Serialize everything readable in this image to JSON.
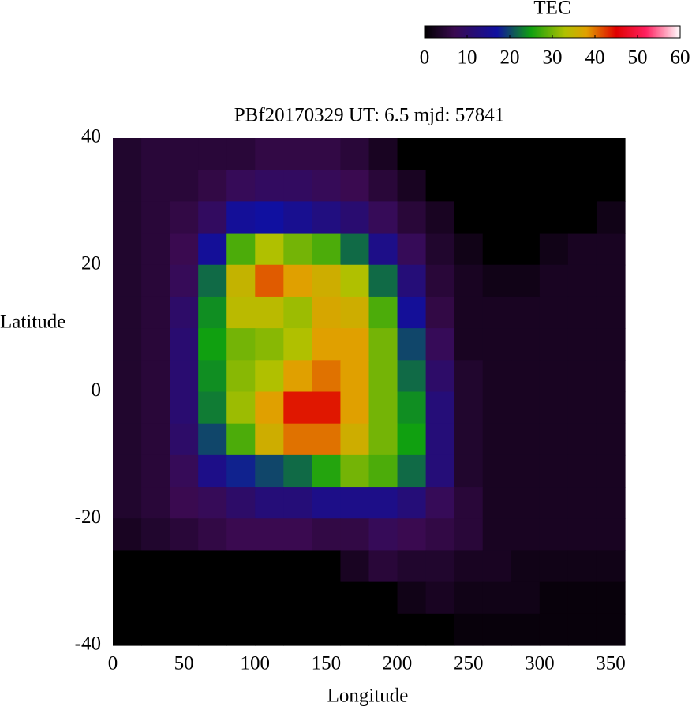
{
  "chart_data": {
    "type": "heatmap",
    "title": "PBf20170329  UT: 6.5  mjd: 57841",
    "x_label": "Longitude",
    "y_label": "Latitude",
    "colorbar_title": "TEC",
    "x": [
      10,
      30,
      50,
      70,
      90,
      110,
      130,
      150,
      170,
      190,
      210,
      230,
      250,
      270,
      290,
      310,
      330,
      350
    ],
    "y": [
      37.5,
      32.5,
      27.5,
      22.5,
      17.5,
      12.5,
      7.5,
      2.5,
      -2.5,
      -7.5,
      -12.5,
      -17.5,
      -22.5,
      -27.5,
      -32.5,
      -37.5
    ],
    "values": [
      [
        4,
        5,
        5,
        5,
        5,
        6,
        6,
        6,
        5,
        3,
        0,
        0,
        0,
        0,
        0,
        0,
        0,
        0
      ],
      [
        4,
        5,
        5,
        6,
        8,
        9,
        9,
        8,
        7,
        5,
        3,
        0,
        0,
        0,
        0,
        0,
        0,
        0
      ],
      [
        4,
        5,
        6,
        9,
        16,
        17,
        15,
        13,
        11,
        8,
        5,
        3,
        0,
        0,
        0,
        0,
        0,
        2
      ],
      [
        4,
        5,
        7,
        16,
        28,
        33,
        30,
        28,
        22,
        14,
        8,
        4,
        2,
        0,
        0,
        2,
        3,
        3
      ],
      [
        4,
        5,
        8,
        22,
        35,
        41,
        38,
        36,
        33,
        22,
        12,
        5,
        3,
        2,
        2,
        3,
        3,
        3
      ],
      [
        4,
        5,
        10,
        24,
        34,
        34,
        32,
        37,
        36,
        28,
        16,
        6,
        3,
        3,
        3,
        3,
        3,
        3
      ],
      [
        4,
        5,
        11,
        25,
        30,
        31,
        33,
        38,
        38,
        30,
        20,
        8,
        3,
        3,
        3,
        3,
        3,
        3
      ],
      [
        4,
        5,
        11,
        24,
        31,
        33,
        38,
        40,
        38,
        30,
        22,
        10,
        4,
        3,
        3,
        3,
        3,
        3
      ],
      [
        4,
        5,
        11,
        23,
        32,
        38,
        44,
        44,
        38,
        30,
        24,
        12,
        4,
        3,
        3,
        3,
        3,
        3
      ],
      [
        4,
        5,
        10,
        20,
        28,
        36,
        40,
        40,
        36,
        30,
        25,
        12,
        4,
        3,
        3,
        3,
        3,
        3
      ],
      [
        4,
        5,
        8,
        14,
        18,
        20,
        22,
        26,
        30,
        28,
        22,
        12,
        4,
        3,
        3,
        3,
        3,
        3
      ],
      [
        4,
        5,
        7,
        8,
        10,
        12,
        12,
        14,
        14,
        14,
        12,
        8,
        5,
        3,
        3,
        3,
        3,
        3
      ],
      [
        3,
        4,
        5,
        6,
        7,
        7,
        7,
        6,
        6,
        8,
        7,
        6,
        5,
        3,
        3,
        3,
        3,
        3
      ],
      [
        0,
        0,
        0,
        0,
        0,
        0,
        0,
        0,
        3,
        5,
        4,
        4,
        3,
        3,
        2,
        2,
        2,
        2
      ],
      [
        0,
        0,
        0,
        0,
        0,
        0,
        0,
        0,
        0,
        0,
        2,
        3,
        2,
        2,
        2,
        1,
        1,
        1
      ],
      [
        0,
        0,
        0,
        0,
        0,
        0,
        0,
        0,
        0,
        0,
        0,
        0,
        1,
        1,
        1,
        1,
        1,
        1
      ]
    ],
    "xlim": [
      0,
      360
    ],
    "xticks": [
      0,
      50,
      100,
      150,
      200,
      250,
      300,
      350
    ],
    "ylim": [
      -40,
      40
    ],
    "yticks": [
      -40,
      -20,
      0,
      20,
      40
    ],
    "clim": [
      0,
      60
    ],
    "cticks": [
      0,
      10,
      20,
      30,
      40,
      50,
      60
    ],
    "colorscale": [
      {
        "value": 0,
        "color": "#000000"
      },
      {
        "value": 7,
        "color": "#3a0a50"
      },
      {
        "value": 17,
        "color": "#1010a0"
      },
      {
        "value": 25,
        "color": "#10a010"
      },
      {
        "value": 33,
        "color": "#b0c000"
      },
      {
        "value": 38,
        "color": "#e0a000"
      },
      {
        "value": 45,
        "color": "#e00000"
      },
      {
        "value": 52,
        "color": "#ff2060"
      },
      {
        "value": 60,
        "color": "#ffffff"
      }
    ],
    "grid": false
  }
}
